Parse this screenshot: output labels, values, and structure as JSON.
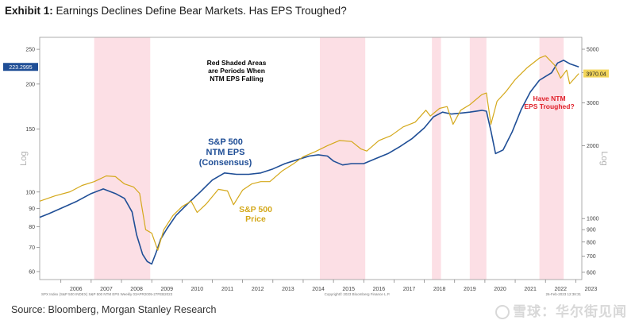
{
  "header": {
    "title_bold": "Exhibit 1:",
    "title_rest": " Earnings Declines Define Bear Markets. Has EPS Troughed?"
  },
  "footer": {
    "source": "Source: Bloomberg, Morgan Stanley Research",
    "watermark": "雪球：华尔街见闻",
    "bottom_left_note": "SPX Index (S&P 500 INDEX) S&P 500 NTM EPS  Weekly 03APR2005-27FEB2023",
    "bottom_center_note": "Copyright© 2023 Bloomberg Finance L.P.",
    "bottom_right_note": "26-Feb-2023 12:38:31"
  },
  "chart_data": {
    "type": "line",
    "y_scale": "log",
    "left_axis": {
      "label": "Log",
      "ticks": [
        60,
        70,
        80,
        90,
        100,
        150,
        200,
        250
      ],
      "range": [
        57,
        270
      ],
      "current_value_label": "223.2995"
    },
    "right_axis": {
      "label": "Log",
      "ticks": [
        600,
        700,
        800,
        900,
        1000,
        2000,
        3000,
        4000,
        5000
      ],
      "range": [
        560,
        5600
      ],
      "current_value_label": "3970.04"
    },
    "x_axis": {
      "ticks": [
        "2006",
        "2007",
        "2008",
        "2009",
        "2010",
        "2011",
        "2012",
        "2013",
        "2014",
        "2015",
        "2016",
        "2017",
        "2018",
        "2019",
        "2020",
        "2021",
        "2022",
        "2023"
      ],
      "range": [
        2005.3,
        2023.2
      ]
    },
    "shaded_periods": [
      [
        2007.1,
        2008.95
      ],
      [
        2014.55,
        2016.05
      ],
      [
        2018.25,
        2018.55
      ],
      [
        2019.5,
        2020.05
      ],
      [
        2021.8,
        2022.6
      ]
    ],
    "series": [
      {
        "name": "S&P 500 NTM EPS (Consensus)",
        "axis": "left",
        "color": "#1f4e96",
        "x": [
          2005.3,
          2005.6,
          2006.0,
          2006.5,
          2007.0,
          2007.4,
          2007.8,
          2008.1,
          2008.35,
          2008.5,
          2008.7,
          2008.85,
          2009.0,
          2009.15,
          2009.3,
          2009.5,
          2009.8,
          2010.2,
          2010.6,
          2011.0,
          2011.4,
          2011.8,
          2012.2,
          2012.6,
          2013.0,
          2013.4,
          2013.8,
          2014.2,
          2014.5,
          2014.8,
          2015.0,
          2015.3,
          2015.6,
          2016.0,
          2016.4,
          2016.8,
          2017.2,
          2017.6,
          2018.0,
          2018.3,
          2018.6,
          2018.9,
          2019.2,
          2019.5,
          2019.9,
          2020.05,
          2020.2,
          2020.35,
          2020.6,
          2020.9,
          2021.2,
          2021.5,
          2021.8,
          2022.0,
          2022.2,
          2022.4,
          2022.6,
          2022.8,
          2023.1
        ],
        "values": [
          85,
          87,
          90,
          94,
          99,
          102,
          99,
          96,
          88,
          76,
          67,
          64,
          63,
          68,
          74,
          79,
          86,
          93,
          100,
          108,
          113,
          112,
          112,
          113,
          116,
          120,
          123,
          126,
          127,
          126,
          122,
          119,
          120,
          120,
          124,
          128,
          134,
          141,
          151,
          162,
          167,
          165,
          166,
          167,
          169,
          168,
          148,
          128,
          131,
          147,
          170,
          190,
          205,
          210,
          215,
          229,
          233,
          228,
          223.3
        ]
      },
      {
        "name": "S&P 500 Price",
        "axis": "right",
        "color": "#d4a81a",
        "x": [
          2005.3,
          2005.8,
          2006.3,
          2006.7,
          2007.1,
          2007.5,
          2007.8,
          2008.1,
          2008.4,
          2008.6,
          2008.8,
          2009.0,
          2009.2,
          2009.4,
          2009.7,
          2010.0,
          2010.3,
          2010.5,
          2010.8,
          2011.2,
          2011.5,
          2011.7,
          2012.0,
          2012.3,
          2012.6,
          2012.9,
          2013.3,
          2013.7,
          2014.0,
          2014.4,
          2014.8,
          2015.2,
          2015.6,
          2015.9,
          2016.1,
          2016.5,
          2016.9,
          2017.3,
          2017.7,
          2018.05,
          2018.2,
          2018.5,
          2018.75,
          2018.95,
          2019.2,
          2019.5,
          2019.9,
          2020.05,
          2020.2,
          2020.4,
          2020.7,
          2021.0,
          2021.4,
          2021.8,
          2022.0,
          2022.3,
          2022.5,
          2022.7,
          2022.8,
          2023.1
        ],
        "values": [
          1180,
          1240,
          1290,
          1370,
          1420,
          1500,
          1490,
          1390,
          1350,
          1270,
          900,
          870,
          740,
          900,
          1030,
          1120,
          1180,
          1060,
          1150,
          1320,
          1300,
          1140,
          1310,
          1390,
          1420,
          1420,
          1570,
          1690,
          1800,
          1890,
          2000,
          2100,
          2080,
          1940,
          1900,
          2100,
          2200,
          2390,
          2500,
          2800,
          2650,
          2850,
          2900,
          2450,
          2800,
          2950,
          3250,
          3300,
          2450,
          3050,
          3350,
          3750,
          4200,
          4600,
          4700,
          4300,
          3800,
          4100,
          3600,
          3970.04
        ]
      }
    ],
    "annotations": [
      {
        "id": "shade_note",
        "lines": [
          "Red Shaded Areas",
          "are Periods When",
          "NTM EPS Falling"
        ],
        "color": "#000000"
      },
      {
        "id": "eps_label",
        "lines": [
          "S&P 500",
          "NTM EPS",
          "(Consensus)"
        ],
        "color": "#1f4e96"
      },
      {
        "id": "price_label",
        "lines": [
          "S&P 500",
          "Price"
        ],
        "color": "#d4a81a"
      },
      {
        "id": "trough_question",
        "lines": [
          "Have NTM",
          "EPS Troughed?"
        ],
        "color": "#e0202a"
      }
    ],
    "grid": false,
    "legend": "none"
  }
}
